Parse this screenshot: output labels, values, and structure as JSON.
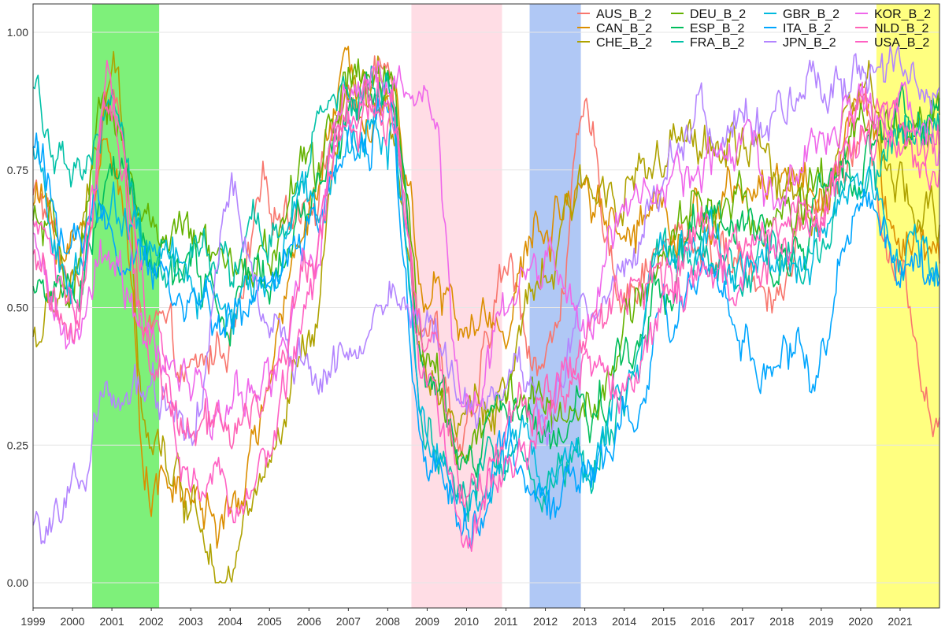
{
  "chart_data": {
    "type": "line",
    "title": "",
    "xlabel": "",
    "ylabel": "",
    "x_range": [
      1999.0,
      2022.0
    ],
    "ylim": [
      0.0,
      1.05
    ],
    "grid": "horizontal major lines only",
    "legend_position": "top-right",
    "x_ticks": [
      "1999",
      "2000",
      "2001",
      "2002",
      "2003",
      "2004",
      "2005",
      "2006",
      "2007",
      "2008",
      "2009",
      "2010",
      "2011",
      "2012",
      "2013",
      "2014",
      "2015",
      "2016",
      "2017",
      "2018",
      "2019",
      "2020",
      "2021"
    ],
    "y_ticks": [
      "0.00",
      "0.25",
      "0.50",
      "0.75",
      "1.00"
    ],
    "shaded_periods": [
      {
        "start": 2000.5,
        "end": 2002.2,
        "color": "#7ef07a"
      },
      {
        "start": 2008.6,
        "end": 2010.9,
        "color": "#ffdde5"
      },
      {
        "start": 2011.6,
        "end": 2012.9,
        "color": "#b0c8f5"
      },
      {
        "start": 2020.4,
        "end": 2022.0,
        "color": "#ffff80"
      }
    ],
    "x": [
      1999.0,
      2000.0,
      2001.0,
      2002.0,
      2003.0,
      2004.0,
      2005.0,
      2006.0,
      2007.0,
      2008.0,
      2009.0,
      2010.0,
      2011.0,
      2012.0,
      2013.0,
      2014.0,
      2015.0,
      2016.0,
      2017.0,
      2018.0,
      2019.0,
      2020.0,
      2021.0,
      2022.0
    ],
    "series": [
      {
        "name": "AUS_B_2",
        "color": "#F8766D",
        "values": [
          0.7,
          0.55,
          0.88,
          0.45,
          0.35,
          0.45,
          0.68,
          0.72,
          0.88,
          0.92,
          0.5,
          0.25,
          0.55,
          0.4,
          0.8,
          0.55,
          0.6,
          0.62,
          0.58,
          0.55,
          0.7,
          0.8,
          0.58,
          0.3
        ]
      },
      {
        "name": "CAN_B_2",
        "color": "#DB8E00",
        "values": [
          0.7,
          0.6,
          0.8,
          0.2,
          0.15,
          0.1,
          0.35,
          0.7,
          0.9,
          0.92,
          0.55,
          0.45,
          0.5,
          0.65,
          0.75,
          0.65,
          0.7,
          0.65,
          0.7,
          0.75,
          0.72,
          0.85,
          0.62,
          0.58
        ]
      },
      {
        "name": "CHE_B_2",
        "color": "#AEA200",
        "values": [
          0.45,
          0.55,
          0.9,
          0.3,
          0.15,
          0.05,
          0.2,
          0.4,
          0.85,
          0.88,
          0.4,
          0.3,
          0.35,
          0.55,
          0.7,
          0.75,
          0.75,
          0.8,
          0.78,
          0.72,
          0.7,
          0.9,
          0.68,
          0.65
        ]
      },
      {
        "name": "DEU_B_2",
        "color": "#64B200",
        "values": [
          0.65,
          0.55,
          0.85,
          0.65,
          0.6,
          0.55,
          0.6,
          0.75,
          0.9,
          0.9,
          0.4,
          0.25,
          0.35,
          0.3,
          0.35,
          0.45,
          0.6,
          0.7,
          0.68,
          0.65,
          0.7,
          0.8,
          0.82,
          0.85
        ]
      },
      {
        "name": "ESP_B_2",
        "color": "#00BD5C",
        "values": [
          0.55,
          0.5,
          0.75,
          0.6,
          0.55,
          0.5,
          0.55,
          0.7,
          0.85,
          0.95,
          0.35,
          0.2,
          0.3,
          0.25,
          0.3,
          0.4,
          0.55,
          0.65,
          0.62,
          0.6,
          0.68,
          0.78,
          0.85,
          0.88
        ]
      },
      {
        "name": "FRA_B_2",
        "color": "#00C1A7",
        "values": [
          0.9,
          0.7,
          0.85,
          0.6,
          0.58,
          0.55,
          0.62,
          0.78,
          0.88,
          0.9,
          0.3,
          0.15,
          0.25,
          0.2,
          0.25,
          0.35,
          0.55,
          0.62,
          0.55,
          0.58,
          0.65,
          0.75,
          0.8,
          0.82
        ]
      },
      {
        "name": "GBR_B_2",
        "color": "#00BADE",
        "values": [
          0.75,
          0.55,
          0.7,
          0.6,
          0.55,
          0.5,
          0.55,
          0.72,
          0.82,
          0.85,
          0.3,
          0.18,
          0.25,
          0.2,
          0.22,
          0.35,
          0.55,
          0.6,
          0.55,
          0.55,
          0.6,
          0.72,
          0.6,
          0.55
        ]
      },
      {
        "name": "ITA_B_2",
        "color": "#00A6FF",
        "values": [
          0.8,
          0.6,
          0.65,
          0.55,
          0.5,
          0.48,
          0.52,
          0.65,
          0.8,
          0.85,
          0.25,
          0.12,
          0.2,
          0.15,
          0.2,
          0.3,
          0.5,
          0.55,
          0.45,
          0.4,
          0.42,
          0.7,
          0.58,
          0.55
        ]
      },
      {
        "name": "JPN_B_2",
        "color": "#B385FF",
        "values": [
          0.1,
          0.15,
          0.3,
          0.35,
          0.25,
          0.7,
          0.45,
          0.4,
          0.38,
          0.5,
          0.45,
          0.35,
          0.4,
          0.35,
          0.45,
          0.6,
          0.75,
          0.85,
          0.88,
          0.85,
          0.88,
          0.92,
          0.9,
          0.9
        ]
      },
      {
        "name": "KOR_B_2",
        "color": "#EF67EB",
        "values": [
          0.65,
          0.45,
          0.6,
          0.4,
          0.35,
          0.3,
          0.35,
          0.6,
          0.92,
          0.9,
          0.85,
          0.3,
          0.45,
          0.55,
          0.5,
          0.7,
          0.7,
          0.75,
          0.75,
          0.72,
          0.8,
          0.9,
          0.88,
          0.8
        ]
      },
      {
        "name": "NLD_B_2",
        "color": "#FF63B6",
        "values": [
          0.6,
          0.45,
          0.85,
          0.4,
          0.25,
          0.25,
          0.3,
          0.55,
          0.85,
          0.88,
          0.4,
          0.15,
          0.25,
          0.35,
          0.45,
          0.55,
          0.6,
          0.65,
          0.6,
          0.65,
          0.7,
          0.85,
          0.82,
          0.78
        ]
      },
      {
        "name": "USA_B_2",
        "color": "#FF61C3",
        "values": [
          0.65,
          0.5,
          0.9,
          0.45,
          0.2,
          0.15,
          0.25,
          0.5,
          0.85,
          0.88,
          0.35,
          0.1,
          0.2,
          0.3,
          0.4,
          0.35,
          0.5,
          0.55,
          0.55,
          0.6,
          0.65,
          0.85,
          0.8,
          0.75
        ]
      }
    ]
  }
}
